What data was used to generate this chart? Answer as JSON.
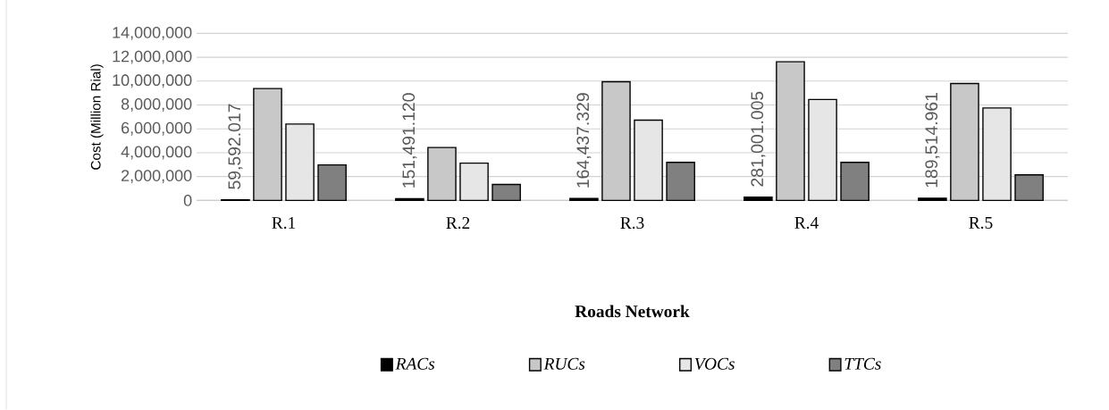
{
  "chart_data": {
    "type": "bar",
    "xlabel": "Roads Network",
    "ylabel": "Cost (Million Rial)",
    "categories": [
      "R.1",
      "R.2",
      "R.3",
      "R.4",
      "R.5"
    ],
    "series": [
      {
        "name": "RACs",
        "color": "#000000",
        "values": [
          59592.017,
          151491.12,
          164437.329,
          281001.005,
          189514.961
        ],
        "value_labels": [
          "59,592.017",
          "151,491.120",
          "164,437.329",
          "281,001.005",
          "189,514.961"
        ]
      },
      {
        "name": "RUCs",
        "color": "#c8c8c8",
        "values": [
          9380000,
          4440000,
          9950000,
          11620000,
          9800000
        ]
      },
      {
        "name": "VOCs",
        "color": "#e6e6e6",
        "values": [
          6400000,
          3130000,
          6730000,
          8460000,
          7750000
        ]
      },
      {
        "name": "TTCs",
        "color": "#808080",
        "values": [
          2980000,
          1340000,
          3190000,
          3190000,
          2140000
        ]
      }
    ],
    "ylim": [
      0,
      14000000
    ],
    "yticks": [
      {
        "value": 0,
        "label": "0"
      },
      {
        "value": 2000000,
        "label": "2,000,000"
      },
      {
        "value": 4000000,
        "label": "4,000,000"
      },
      {
        "value": 6000000,
        "label": "6,000,000"
      },
      {
        "value": 8000000,
        "label": "8,000,000"
      },
      {
        "value": 10000000,
        "label": "10,000,000"
      },
      {
        "value": 12000000,
        "label": "12,000,000"
      },
      {
        "value": 14000000,
        "label": "14,000,000"
      }
    ],
    "grid": "y",
    "legend": "bottom"
  }
}
